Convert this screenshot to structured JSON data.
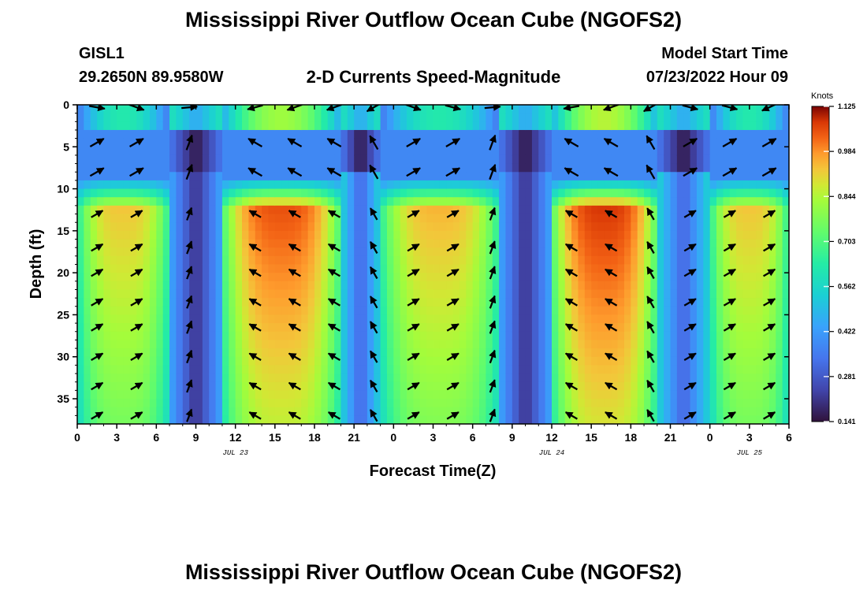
{
  "page": {
    "title": "Mississippi River Outflow Ocean Cube (NGOFS2)",
    "bottom_title": "Mississippi River Outflow Ocean Cube (NGOFS2)",
    "station_id": "GISL1",
    "station_coords": "29.2650N  89.9580W",
    "subtitle": "2-D Currents Speed-Magnitude",
    "model_start_label": "Model Start Time",
    "model_start_value": "07/23/2022 Hour 09"
  },
  "chart_data": {
    "type": "heatmap",
    "xlabel": "Forecast Time(Z)",
    "ylabel": "Depth (ft)",
    "x_range_hours": [
      0,
      54
    ],
    "y_range_ft": [
      0,
      38
    ],
    "y_inverted": true,
    "x_tick_labels": [
      "0",
      "3",
      "6",
      "9",
      "12",
      "15",
      "18",
      "21",
      "0",
      "3",
      "6",
      "9",
      "12",
      "15",
      "18",
      "21",
      "0",
      "3",
      "6"
    ],
    "y_ticks": [
      0,
      5,
      10,
      15,
      20,
      25,
      30,
      35
    ],
    "date_labels": [
      {
        "text": "JUL 23",
        "hour": 12
      },
      {
        "text": "JUL 24",
        "hour": 36
      },
      {
        "text": "JUL 25",
        "hour": 51
      }
    ],
    "colorbar": {
      "unit": "Knots",
      "min": 0.141,
      "max": 1.125,
      "tick_labels": [
        "1.125",
        "0.984",
        "0.844",
        "0.703",
        "0.562",
        "0.422",
        "0.281",
        "0.141"
      ]
    },
    "columns": [
      {
        "name": "deep-max-1",
        "hour_start": 0,
        "hour_end": 7,
        "surface_speed": 0.62,
        "mid_speed": 0.38,
        "deep_speed": 0.93
      },
      {
        "name": "slack-1",
        "hour_start": 7,
        "hour_end": 11,
        "surface_speed": 0.45,
        "mid_speed": 0.15,
        "deep_speed": 0.2
      },
      {
        "name": "deep-max-2",
        "hour_start": 11,
        "hour_end": 20,
        "surface_speed": 0.82,
        "mid_speed": 0.38,
        "deep_speed": 1.05
      },
      {
        "name": "slack-2",
        "hour_start": 20,
        "hour_end": 23,
        "surface_speed": 0.45,
        "mid_speed": 0.18,
        "deep_speed": 0.3
      },
      {
        "name": "deep-max-3",
        "hour_start": 23,
        "hour_end": 32,
        "surface_speed": 0.62,
        "mid_speed": 0.38,
        "deep_speed": 0.95
      },
      {
        "name": "slack-3",
        "hour_start": 32,
        "hour_end": 36,
        "surface_speed": 0.45,
        "mid_speed": 0.15,
        "deep_speed": 0.2
      },
      {
        "name": "deep-max-4",
        "hour_start": 36,
        "hour_end": 44,
        "surface_speed": 0.85,
        "mid_speed": 0.38,
        "deep_speed": 1.08
      },
      {
        "name": "slack-4",
        "hour_start": 44,
        "hour_end": 48,
        "surface_speed": 0.45,
        "mid_speed": 0.18,
        "deep_speed": 0.3
      },
      {
        "name": "deep-max-5",
        "hour_start": 48,
        "hour_end": 54,
        "surface_speed": 0.62,
        "mid_speed": 0.38,
        "deep_speed": 0.93
      }
    ],
    "vector_columns_hours": [
      1.5,
      4.5,
      8.5,
      13.5,
      16.5,
      19.5,
      22.5,
      25.5,
      28.5,
      31.5,
      37.5,
      40.5,
      43.5,
      46.5,
      49.5,
      52.5
    ],
    "vector_rows_ft": [
      0.3,
      4.5,
      8,
      13,
      17,
      20,
      23.5,
      26.5,
      30,
      33.5,
      37
    ],
    "vector_direction_by_column_deg": [
      210,
      210,
      250,
      330,
      330,
      330,
      300,
      210,
      210,
      250,
      330,
      330,
      300,
      210,
      210,
      210
    ],
    "surface_layer_direction_deg": [
      170,
      160,
      185,
      15,
      20,
      20,
      30,
      160,
      165,
      185,
      10,
      20,
      30,
      165,
      165,
      25
    ]
  }
}
